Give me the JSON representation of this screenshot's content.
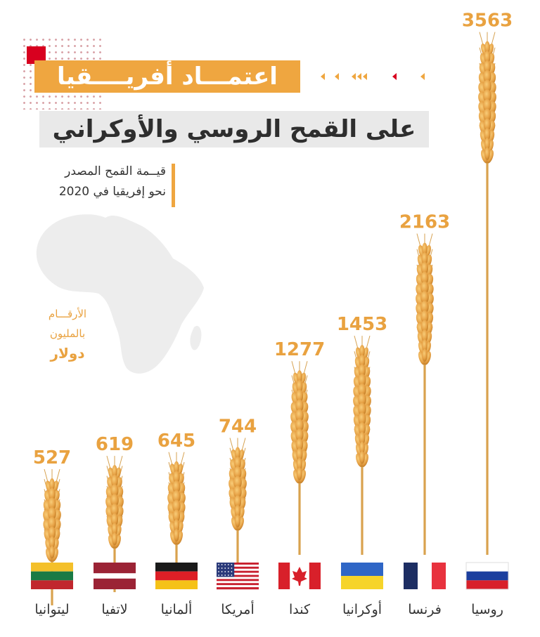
{
  "title": {
    "line1": "اعتمـــاد أفريــــقيا",
    "line2": "على القمح الروسي والأوكراني"
  },
  "subtitle": {
    "line1": "قيــمة القمح المصدر",
    "line2": "نحو إفريقيا في 2020"
  },
  "units_note": {
    "line1": "الأرقـــام",
    "line2": "بالمليون",
    "line3": "دولار"
  },
  "colors": {
    "accent": "#efa640",
    "value_text": "#e9a240",
    "title_red": "#d8001f",
    "title_band": "#e9e9e9"
  },
  "chart_data": {
    "type": "bar",
    "categories": [
      "روسيا",
      "فرنسا",
      "أوكرانيا",
      "كندا",
      "أمريكا",
      "ألمانيا",
      "لاتفيا",
      "ليتوانيا"
    ],
    "values": [
      3563,
      2163,
      1453,
      1277,
      744,
      645,
      619,
      527
    ],
    "flags": [
      "russia-flag-icon",
      "france-flag-icon",
      "ukraine-flag-icon",
      "canada-flag-icon",
      "usa-flag-icon",
      "germany-flag-icon",
      "latvia-flag-icon",
      "lithuania-flag-icon"
    ]
  }
}
